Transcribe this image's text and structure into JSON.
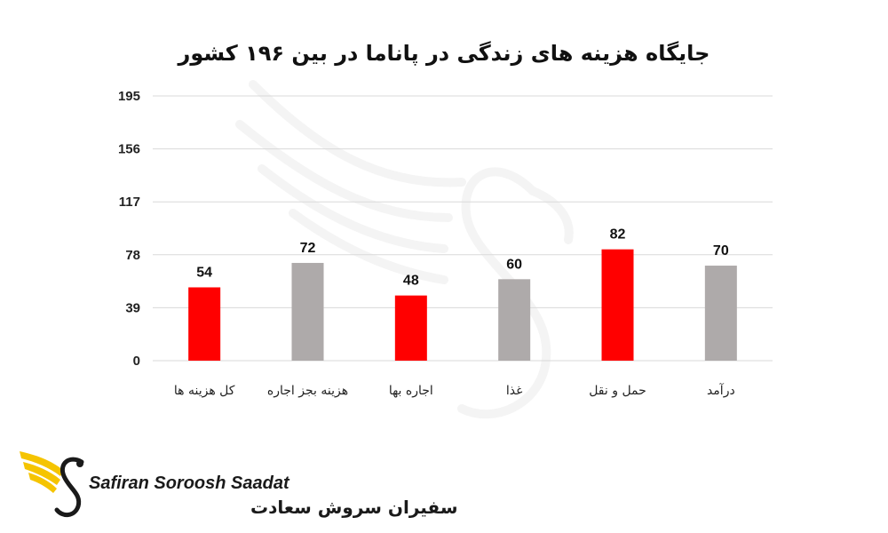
{
  "chart_data": {
    "type": "bar",
    "title": "جایگاه هزینه های زندگی در پاناما در بین ۱۹۶ کشور",
    "xlabel": "",
    "ylabel": "",
    "categories": [
      "کل هزینه ها",
      "هزینه بجز اجاره",
      "اجاره بها",
      "غذا",
      "حمل و نقل",
      "درآمد"
    ],
    "values": [
      54,
      72,
      48,
      60,
      82,
      70
    ],
    "colors": [
      "#ff0000",
      "#aeaaaa",
      "#ff0000",
      "#aeaaaa",
      "#ff0000",
      "#aeaaaa"
    ],
    "yticks": [
      0,
      39,
      78,
      117,
      156,
      195
    ],
    "ylim": [
      0,
      195
    ],
    "grid": true,
    "legend": "none"
  },
  "brand": {
    "name_en": "Safiran Soroosh Saadat",
    "name_fa": "سفیران سروش سعادت",
    "accent_colors": [
      "#f5c400",
      "#1a1a1a"
    ]
  }
}
